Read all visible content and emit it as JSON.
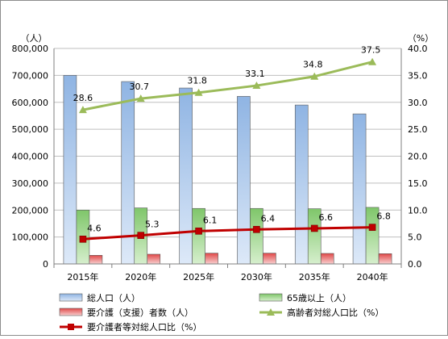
{
  "chart_data": {
    "type": "bar",
    "categories": [
      "2015年",
      "2020年",
      "2025年",
      "2030年",
      "2035年",
      "2040年"
    ],
    "y_left": {
      "unit": "（人）",
      "min": 0,
      "max": 800000,
      "step": 100000,
      "ticks": [
        "0",
        "100,000",
        "200,000",
        "300,000",
        "400,000",
        "500,000",
        "600,000",
        "700,000",
        "800,000"
      ]
    },
    "y_right": {
      "unit": "（%）",
      "min": 0,
      "max": 40,
      "step": 5,
      "ticks": [
        "0.0",
        "5.0",
        "10.0",
        "15.0",
        "20.0",
        "25.0",
        "30.0",
        "35.0",
        "40.0"
      ]
    },
    "series": [
      {
        "name": "総人口（人）",
        "type": "bar",
        "axis": "left",
        "color": "#8fb4e3",
        "values": [
          700000,
          677000,
          653000,
          622000,
          590000,
          557000
        ]
      },
      {
        "name": "65歳以上（人）",
        "type": "bar",
        "axis": "left",
        "color": "#7fc66a",
        "values": [
          200000,
          208000,
          206000,
          206000,
          205000,
          210000
        ]
      },
      {
        "name": "要介護（支援）者数（人）",
        "type": "bar",
        "axis": "left",
        "color": "#e04848",
        "values": [
          32000,
          36000,
          40000,
          40000,
          39000,
          38000
        ]
      },
      {
        "name": "高齢者対総人口比（%）",
        "type": "line",
        "axis": "right",
        "color": "#9bbb59",
        "values": [
          28.6,
          30.7,
          31.8,
          33.1,
          34.8,
          37.5
        ],
        "labels": [
          "28.6",
          "30.7",
          "31.8",
          "33.1",
          "34.8",
          "37.5"
        ]
      },
      {
        "name": "要介護者等対総人口比（%）",
        "type": "line",
        "axis": "right",
        "color": "#c00000",
        "values": [
          4.6,
          5.3,
          6.1,
          6.4,
          6.6,
          6.8
        ],
        "labels": [
          "4.6",
          "5.3",
          "6.1",
          "6.4",
          "6.6",
          "6.8"
        ]
      }
    ],
    "legend_position": "bottom",
    "grid": "horizontal"
  }
}
